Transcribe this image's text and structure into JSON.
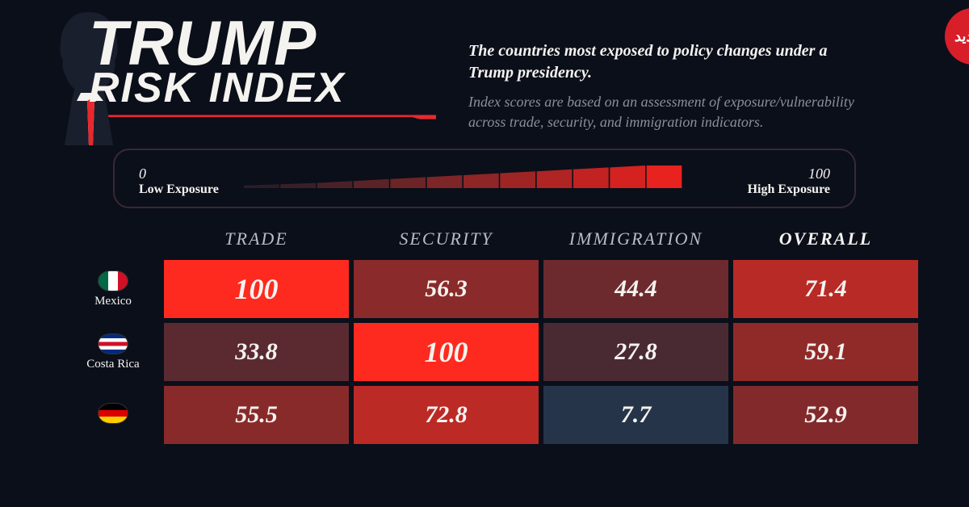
{
  "title": {
    "line1": "TRUMP",
    "line2": "RISK INDEX",
    "underline_color": "#e8282d",
    "silhouette_color": "#1a1f2e",
    "tie_color": "#e8282d",
    "collar_color": "#f5f3ef"
  },
  "description": {
    "bold": "The countries most exposed to policy changes under a Trump presidency.",
    "sub": "Index scores are based on an assessment of exposure/vulnerability across trade, security, and immigration indicators."
  },
  "badge": {
    "label": "فرادید",
    "bg": "#d81e28"
  },
  "scale": {
    "min": "0",
    "max": "100",
    "low_label": "Low Exposure",
    "high_label": "High Exposure",
    "segments": 12,
    "colors": [
      "#2b1d27",
      "#3a1f27",
      "#4a2127",
      "#5b2327",
      "#6c2427",
      "#7d2527",
      "#8e2526",
      "#9f2525",
      "#b02424",
      "#c22322",
      "#d42220",
      "#e8221e"
    ],
    "heights": [
      4,
      6,
      8,
      11,
      14,
      17,
      20,
      23,
      26,
      29,
      32,
      35
    ]
  },
  "columns": [
    {
      "label": "TRADE",
      "bold": false
    },
    {
      "label": "SECURITY",
      "bold": false
    },
    {
      "label": "IMMIGRATION",
      "bold": false
    },
    {
      "label": "OVERALL",
      "bold": true
    }
  ],
  "rows": [
    {
      "country": "Mexico",
      "flag": {
        "stripes": [
          "#006847",
          "#ffffff",
          "#ce1126"
        ],
        "dir": "v"
      },
      "cells": [
        {
          "value": "100",
          "bg": "#ff2a1f",
          "fs": 36
        },
        {
          "value": "56.3",
          "bg": "#8a2a2a",
          "fs": 30
        },
        {
          "value": "44.4",
          "bg": "#6d2a2e",
          "fs": 30
        },
        {
          "value": "71.4",
          "bg": "#b82a26",
          "fs": 30
        }
      ]
    },
    {
      "country": "Costa Rica",
      "flag": {
        "stripes": [
          "#002b7f",
          "#ffffff",
          "#ce1126",
          "#ffffff",
          "#002b7f"
        ],
        "dir": "h"
      },
      "cells": [
        {
          "value": "33.8",
          "bg": "#5a2a30",
          "fs": 30
        },
        {
          "value": "100",
          "bg": "#ff2a1f",
          "fs": 36
        },
        {
          "value": "27.8",
          "bg": "#4a2a32",
          "fs": 30
        },
        {
          "value": "59.1",
          "bg": "#902a29",
          "fs": 30
        }
      ]
    },
    {
      "country": "",
      "flag": {
        "stripes": [
          "#000000",
          "#dd0000",
          "#ffce00"
        ],
        "dir": "h"
      },
      "cells": [
        {
          "value": "55.5",
          "bg": "#882a2a",
          "fs": 30
        },
        {
          "value": "72.8",
          "bg": "#bb2a25",
          "fs": 30
        },
        {
          "value": "7.7",
          "bg": "#26344a",
          "fs": 30
        },
        {
          "value": "52.9",
          "bg": "#822a2b",
          "fs": 30
        }
      ]
    }
  ],
  "color_map_note": "cell bg interpolates dark-navy (low) to bright-red (high) on 0-100"
}
